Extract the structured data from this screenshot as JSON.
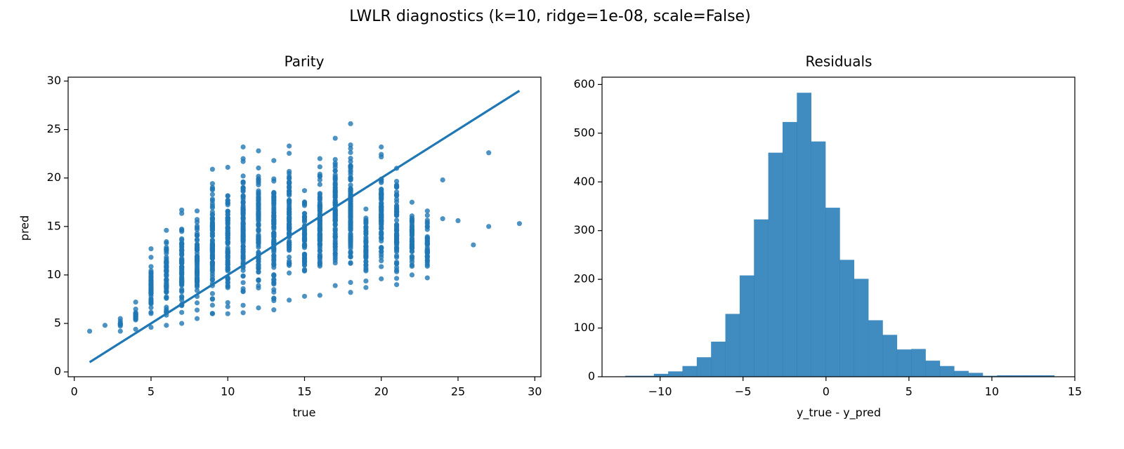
{
  "figure": {
    "suptitle": "LWLR diagnostics (k=10, ridge=1e-08, scale=False)"
  },
  "colors": {
    "series": "#1f77b4",
    "frame": "#000000",
    "background": "#ffffff"
  },
  "chart_data": [
    {
      "type": "scatter",
      "title": "Parity",
      "xlabel": "true",
      "ylabel": "pred",
      "xlim": [
        -0.4,
        30.4
      ],
      "ylim": [
        -0.5,
        30.4
      ],
      "xticks": [
        0,
        5,
        10,
        15,
        20,
        25,
        30
      ],
      "yticks": [
        0,
        5,
        10,
        15,
        20,
        25,
        30
      ],
      "grid": false,
      "identity_line": {
        "x": [
          1,
          29
        ],
        "y": [
          1,
          29
        ]
      },
      "point_ranges": [
        {
          "x": 1,
          "min": 4.2,
          "max": 4.2
        },
        {
          "x": 2,
          "min": 4.8,
          "max": 4.8
        },
        {
          "x": 3,
          "min": 4.2,
          "max": 5.5
        },
        {
          "x": 4,
          "min": 4.4,
          "max": 7.2
        },
        {
          "x": 5,
          "min": 4.6,
          "max": 12.7
        },
        {
          "x": 6,
          "min": 4.8,
          "max": 14.6
        },
        {
          "x": 7,
          "min": 5.0,
          "max": 16.7
        },
        {
          "x": 8,
          "min": 5.5,
          "max": 16.6
        },
        {
          "x": 9,
          "min": 6.0,
          "max": 20.9
        },
        {
          "x": 10,
          "min": 6.0,
          "max": 21.1
        },
        {
          "x": 11,
          "min": 6.1,
          "max": 23.2
        },
        {
          "x": 12,
          "min": 6.6,
          "max": 22.8
        },
        {
          "x": 13,
          "min": 6.4,
          "max": 21.8
        },
        {
          "x": 14,
          "min": 7.4,
          "max": 23.3
        },
        {
          "x": 15,
          "min": 7.8,
          "max": 18.7
        },
        {
          "x": 16,
          "min": 7.9,
          "max": 22.0
        },
        {
          "x": 17,
          "min": 8.9,
          "max": 24.1
        },
        {
          "x": 18,
          "min": 8.2,
          "max": 25.6
        },
        {
          "x": 19,
          "min": 8.7,
          "max": 16.8
        },
        {
          "x": 20,
          "min": 9.6,
          "max": 23.2
        },
        {
          "x": 21,
          "min": 9.0,
          "max": 21.0
        },
        {
          "x": 22,
          "min": 10.0,
          "max": 17.5
        },
        {
          "x": 23,
          "min": 9.7,
          "max": 16.6
        }
      ],
      "points": [
        {
          "x": 24,
          "y": 19.8
        },
        {
          "x": 24,
          "y": 15.8
        },
        {
          "x": 25,
          "y": 15.6
        },
        {
          "x": 26,
          "y": 13.1
        },
        {
          "x": 27,
          "y": 22.6
        },
        {
          "x": 27,
          "y": 15.0
        },
        {
          "x": 29,
          "y": 15.3
        }
      ]
    },
    {
      "type": "bar",
      "title": "Residuals",
      "xlabel": "y_true - y_pred",
      "ylabel": "",
      "xlim": [
        -13.5,
        15
      ],
      "ylim": [
        0,
        615
      ],
      "xticks": [
        -10,
        -5,
        0,
        5,
        10,
        15
      ],
      "xtick_labels": [
        "−10",
        "−5",
        "0",
        "5",
        "10",
        "15"
      ],
      "yticks": [
        0,
        100,
        200,
        300,
        400,
        500,
        600
      ],
      "grid": false,
      "bin_start": -12.1,
      "bin_width": 0.862,
      "values": [
        2,
        2,
        6,
        11,
        22,
        40,
        72,
        129,
        208,
        323,
        460,
        523,
        583,
        483,
        347,
        240,
        201,
        116,
        86,
        56,
        57,
        33,
        22,
        12,
        8,
        2,
        3,
        3,
        3,
        3
      ]
    }
  ]
}
